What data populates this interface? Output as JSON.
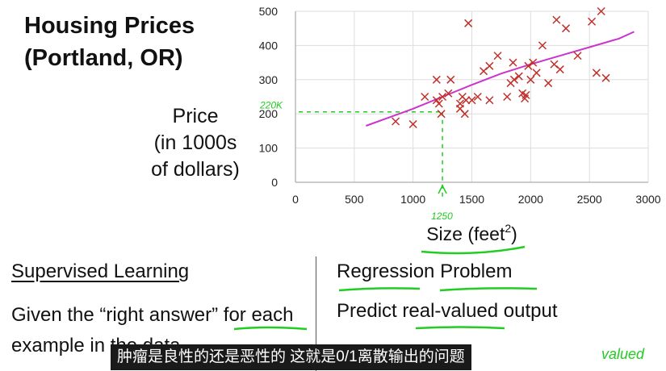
{
  "title": {
    "line1": "Housing Prices",
    "line2": "(Portland, OR)"
  },
  "y_axis_label": {
    "line1": "Price",
    "line2": "(in 1000s",
    "line3": "of dollars)"
  },
  "x_axis_label": {
    "text": "Size (feet",
    "sup": "2",
    "close": ")"
  },
  "annotations": {
    "price_marker": "220K",
    "size_marker": "1250"
  },
  "left_panel": {
    "heading": "Supervised Learning",
    "body_pre": "Given the “",
    "body_emph": "right answer",
    "body_post": "” for each example in the data."
  },
  "right_panel": {
    "heading": "Regression Problem",
    "body_pre": "Predict ",
    "body_emph": "real-valued",
    "body_post": " output",
    "handwritten": "valued"
  },
  "caption": "肿瘤是良性的还是恶性的 这就是0/1离散输出的问题",
  "colors": {
    "points": "#c0302a",
    "fit_line": "#cc33cc",
    "annotation": "#22cc22",
    "caption_bg": "#1a1a1a"
  },
  "chart_data": {
    "type": "scatter",
    "xlabel": "Size (feet²)",
    "ylabel": "Price (in 1000s of dollars)",
    "xlim": [
      0,
      3000
    ],
    "ylim": [
      0,
      500
    ],
    "xticks": [
      0,
      500,
      1000,
      1500,
      2000,
      2500,
      3000
    ],
    "yticks": [
      0,
      100,
      200,
      300,
      400,
      500
    ],
    "grid": true,
    "points": [
      [
        852,
        178
      ],
      [
        1000,
        170
      ],
      [
        1100,
        250
      ],
      [
        1200,
        300
      ],
      [
        1200,
        240
      ],
      [
        1220,
        230
      ],
      [
        1240,
        200
      ],
      [
        1250,
        250
      ],
      [
        1300,
        260
      ],
      [
        1320,
        300
      ],
      [
        1400,
        215
      ],
      [
        1400,
        230
      ],
      [
        1420,
        250
      ],
      [
        1440,
        200
      ],
      [
        1450,
        240
      ],
      [
        1470,
        465
      ],
      [
        1500,
        240
      ],
      [
        1550,
        250
      ],
      [
        1600,
        325
      ],
      [
        1650,
        340
      ],
      [
        1650,
        240
      ],
      [
        1720,
        370
      ],
      [
        1800,
        250
      ],
      [
        1830,
        290
      ],
      [
        1850,
        350
      ],
      [
        1860,
        300
      ],
      [
        1900,
        310
      ],
      [
        1930,
        260
      ],
      [
        1950,
        245
      ],
      [
        1960,
        255
      ],
      [
        1980,
        340
      ],
      [
        2000,
        300
      ],
      [
        2020,
        350
      ],
      [
        2050,
        320
      ],
      [
        2100,
        400
      ],
      [
        2150,
        290
      ],
      [
        2200,
        345
      ],
      [
        2220,
        475
      ],
      [
        2250,
        330
      ],
      [
        2300,
        450
      ],
      [
        2400,
        370
      ],
      [
        2520,
        470
      ],
      [
        2560,
        320
      ],
      [
        2600,
        500
      ],
      [
        2640,
        305
      ]
    ],
    "fit_line": [
      [
        600,
        165
      ],
      [
        800,
        190
      ],
      [
        1000,
        215
      ],
      [
        1250,
        250
      ],
      [
        1500,
        285
      ],
      [
        1750,
        318
      ],
      [
        2000,
        345
      ],
      [
        2250,
        370
      ],
      [
        2500,
        395
      ],
      [
        2750,
        420
      ],
      [
        2880,
        440
      ]
    ],
    "reference": {
      "x": 1250,
      "y": 220
    }
  }
}
